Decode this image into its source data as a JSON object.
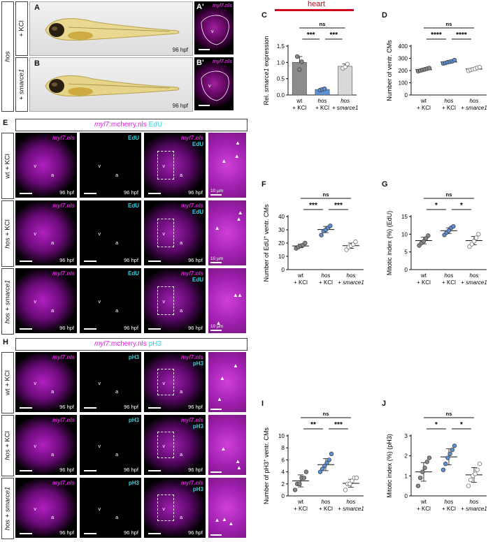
{
  "colors": {
    "magenta": "#e020e0",
    "cyan": "#28d6e6",
    "heart_red": "#d0021b",
    "grey_bar": "#8c8c8c",
    "blue_pt": "#5b8fd6"
  },
  "rows": {
    "hos": "hos",
    "kcl": "+ KCl",
    "smarce1": "+ smarce1",
    "wt_kcl": "wt + KCl",
    "hos_kcl": "hos + KCl",
    "hos_smarce1": "hos + smarce1"
  },
  "panels": {
    "A": "A",
    "A2": "A'",
    "B": "B",
    "B2": "B'",
    "C": "C",
    "D": "D",
    "E": "E",
    "F": "F",
    "G": "G",
    "H": "H",
    "I": "I",
    "J": "J"
  },
  "labels": {
    "hpf": "96 hpf",
    "myl7": "myl7.nls",
    "edu": "EdU",
    "ph3": "pH3",
    "v": "v",
    "a": "a",
    "scale10": "10 µm",
    "e_banner_gene": "myl7",
    "e_banner_rest": ":mcherry.nls",
    "e_banner_marker": "EdU",
    "h_banner_gene": "myl7",
    "h_banner_rest": ":mcherry.nls",
    "h_banner_marker": "pH3",
    "heart": "heart",
    "wt": "wt",
    "hos": "hos",
    "kcl": "+ KCl",
    "smarce1": "+ smarce1",
    "hos_plus": "hos +",
    "smarce1_word": "smarce1"
  },
  "chart_data": [
    {
      "id": "C",
      "type": "bar",
      "ylabel": "Rel. smarce1 expression",
      "categories": [
        "wt + KCl",
        "hos + KCl",
        "hos + smarce1"
      ],
      "values": [
        1.0,
        0.17,
        0.88
      ],
      "ylim": [
        0,
        1.5
      ],
      "yticks": [
        0.0,
        0.5,
        1.0,
        1.5
      ],
      "points": [
        [
          1.18,
          0.78,
          1.02
        ],
        [
          0.15,
          0.17,
          0.19
        ],
        [
          0.82,
          0.86,
          0.95
        ]
      ],
      "significance": [
        {
          "from": 0,
          "to": 1,
          "label": "***"
        },
        {
          "from": 1,
          "to": 2,
          "label": "***"
        },
        {
          "from": 0,
          "to": 2,
          "label": "ns"
        }
      ]
    },
    {
      "id": "D",
      "type": "scatter",
      "ylabel": "Number of ventr. CMs",
      "categories": [
        "wt + KCl",
        "hos + KCl",
        "hos + smarce1"
      ],
      "values": [
        207,
        270,
        212
      ],
      "ylim": [
        0,
        400
      ],
      "yticks": [
        0,
        100,
        200,
        300,
        400
      ],
      "points": [
        [
          195,
          200,
          205,
          210,
          215,
          220
        ],
        [
          258,
          262,
          268,
          272,
          276,
          285
        ],
        [
          198,
          205,
          210,
          215,
          222,
          228
        ]
      ],
      "significance": [
        {
          "from": 0,
          "to": 1,
          "label": "****"
        },
        {
          "from": 1,
          "to": 2,
          "label": "****"
        },
        {
          "from": 0,
          "to": 2,
          "label": "ns"
        }
      ]
    },
    {
      "id": "F",
      "type": "scatter",
      "ylabel": "Number of EdU+ ventr. CMs",
      "categories": [
        "wt + KCl",
        "hos + KCl",
        "hos + smarce1"
      ],
      "values": [
        17.8,
        30.2,
        18.0
      ],
      "ylim": [
        0,
        40
      ],
      "yticks": [
        0,
        10,
        20,
        30,
        40
      ],
      "points": [
        [
          16,
          17,
          18,
          18.5,
          20
        ],
        [
          26,
          29,
          30,
          31.5,
          33
        ],
        [
          15,
          17,
          18,
          19,
          21
        ]
      ],
      "significance": [
        {
          "from": 0,
          "to": 1,
          "label": "***"
        },
        {
          "from": 1,
          "to": 2,
          "label": "***"
        },
        {
          "from": 0,
          "to": 2,
          "label": "ns"
        }
      ]
    },
    {
      "id": "G",
      "type": "scatter",
      "ylabel": "Mitotic index (%) (EdU)",
      "categories": [
        "wt + KCl",
        "hos + KCl",
        "hos + smarce1"
      ],
      "values": [
        8.2,
        11.0,
        8.2
      ],
      "ylim": [
        0,
        15
      ],
      "yticks": [
        0,
        5,
        10,
        15
      ],
      "points": [
        [
          6.8,
          7.5,
          8.0,
          8.8,
          9.6
        ],
        [
          9.8,
          10.5,
          11.0,
          11.8,
          12.2
        ],
        [
          6.5,
          7.2,
          8.0,
          9.0,
          10.0
        ]
      ],
      "significance": [
        {
          "from": 0,
          "to": 1,
          "label": "*"
        },
        {
          "from": 1,
          "to": 2,
          "label": "*"
        },
        {
          "from": 0,
          "to": 2,
          "label": "ns"
        }
      ]
    },
    {
      "id": "I",
      "type": "scatter",
      "ylabel": "Number of pH3+ ventr. CMs",
      "categories": [
        "wt + KCl",
        "hos + KCl",
        "hos + smarce1"
      ],
      "values": [
        2.5,
        5.2,
        2.1
      ],
      "ylim": [
        0,
        10
      ],
      "yticks": [
        0,
        2,
        4,
        6,
        8,
        10
      ],
      "points": [
        [
          1.0,
          2.0,
          2.0,
          3.0,
          3.0,
          4.0
        ],
        [
          4.0,
          4.5,
          5.0,
          5.5,
          6.0,
          7.0
        ],
        [
          1.0,
          2.0,
          2.0,
          2.5,
          3.0,
          3.0
        ]
      ],
      "significance": [
        {
          "from": 0,
          "to": 1,
          "label": "**"
        },
        {
          "from": 1,
          "to": 2,
          "label": "***"
        },
        {
          "from": 0,
          "to": 2,
          "label": "ns"
        }
      ]
    },
    {
      "id": "J",
      "type": "scatter",
      "ylabel": "Mitotic index (%) (pH3)",
      "categories": [
        "wt + KCl",
        "hos + KCl",
        "hos + smarce1"
      ],
      "values": [
        1.2,
        1.95,
        1.05
      ],
      "ylim": [
        0,
        3
      ],
      "yticks": [
        0,
        1,
        2,
        3
      ],
      "points": [
        [
          0.5,
          0.9,
          1.2,
          1.4,
          1.7,
          1.9
        ],
        [
          1.3,
          1.6,
          1.9,
          2.1,
          2.3,
          2.5
        ],
        [
          0.5,
          0.8,
          1.0,
          1.1,
          1.3,
          1.6
        ]
      ],
      "significance": [
        {
          "from": 0,
          "to": 1,
          "label": "*"
        },
        {
          "from": 1,
          "to": 2,
          "label": "*"
        },
        {
          "from": 0,
          "to": 2,
          "label": "ns"
        }
      ]
    }
  ]
}
